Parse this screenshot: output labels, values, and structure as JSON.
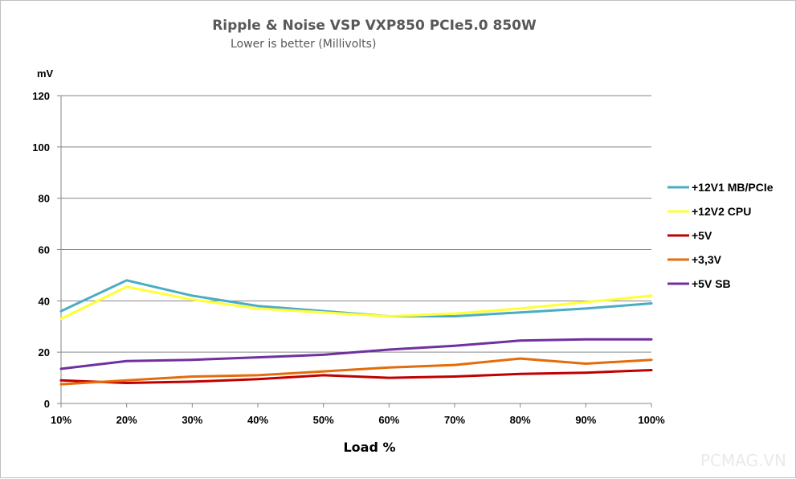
{
  "watermark": "PCMAG.VN",
  "chart_data": {
    "type": "line",
    "title": "Ripple & Noise VSP VXP850 PCIe5.0 850W",
    "subtitle": "Lower is better (Millivolts)",
    "unit_label": "mV",
    "xlabel": "Load %",
    "categories": [
      "10%",
      "20%",
      "30%",
      "40%",
      "50%",
      "60%",
      "70%",
      "80%",
      "90%",
      "100%"
    ],
    "ylim": [
      0,
      120
    ],
    "yticks": [
      0,
      20,
      40,
      60,
      80,
      100,
      120
    ],
    "grid": true,
    "legend_position": "right",
    "series": [
      {
        "name": "+12V1 MB/PCIe",
        "color": "#4bacc6",
        "values": [
          36,
          48,
          42,
          38,
          36,
          34,
          34,
          35.5,
          37,
          39
        ]
      },
      {
        "name": "+12V2 CPU",
        "color": "#ffff33",
        "values": [
          33,
          45.5,
          40.5,
          37,
          35.5,
          34,
          35,
          37,
          39.5,
          42
        ]
      },
      {
        "name": "+5V",
        "color": "#c00000",
        "values": [
          9,
          8,
          8.5,
          9.5,
          11,
          10,
          10.5,
          11.5,
          12,
          13
        ]
      },
      {
        "name": "+3,3V",
        "color": "#e46c0a",
        "values": [
          7.5,
          9,
          10.5,
          11,
          12.5,
          14,
          15,
          17.5,
          15.5,
          17
        ]
      },
      {
        "name": "+5V SB",
        "color": "#7030a0",
        "values": [
          13.5,
          16.5,
          17,
          18,
          19,
          21,
          22.5,
          24.5,
          25,
          25
        ]
      }
    ]
  }
}
